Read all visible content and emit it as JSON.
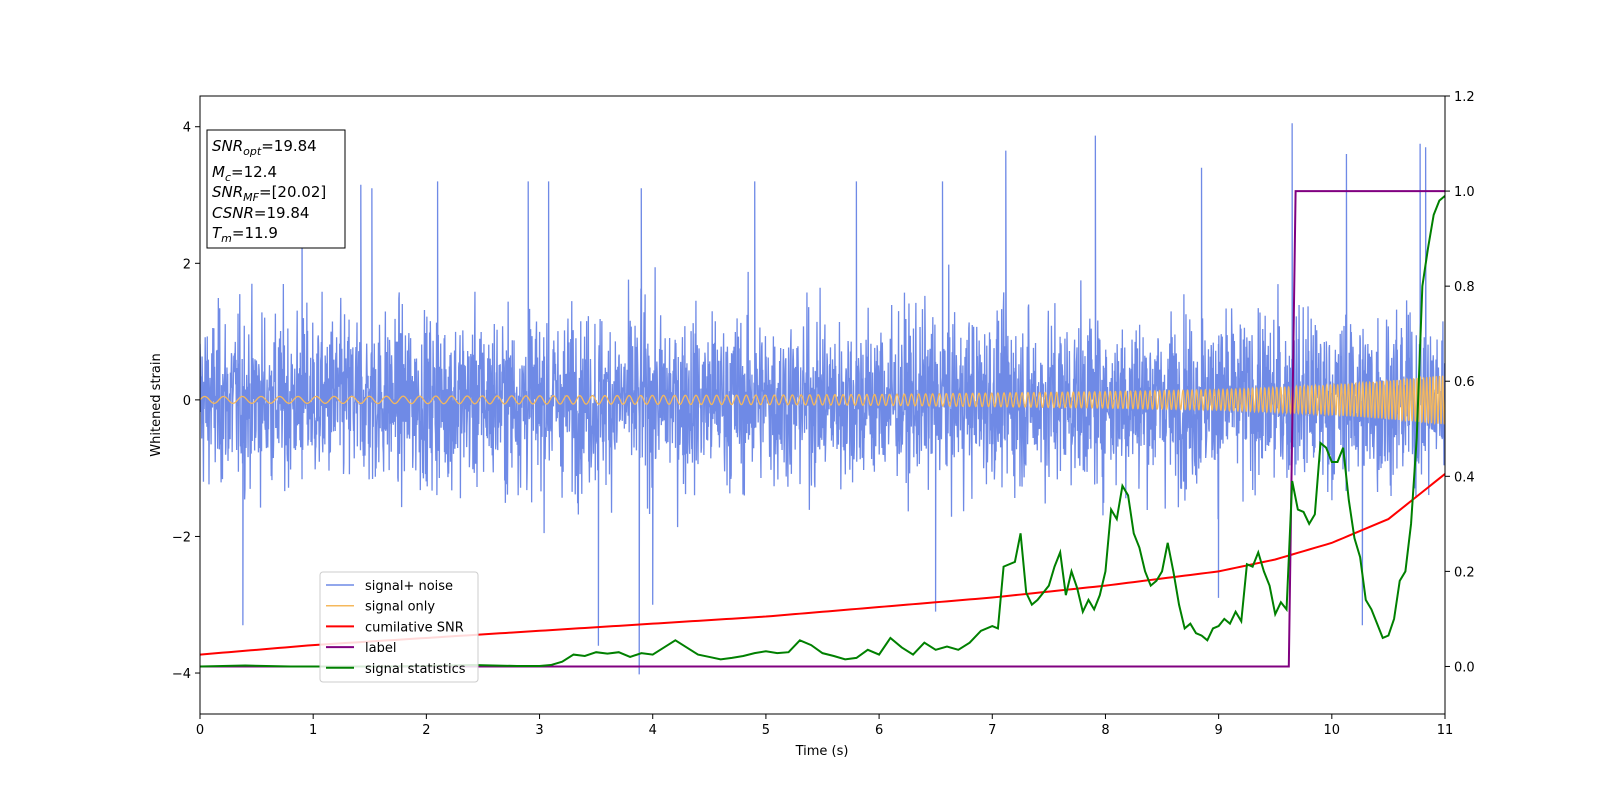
{
  "chart_data": {
    "type": "line",
    "title": "",
    "xlabel": "Time (s)",
    "ylabel": "Whitened strain",
    "y2label": "",
    "xlim": [
      0,
      11
    ],
    "ylim": [
      -4.6,
      4.45
    ],
    "y2lim": [
      -0.1,
      1.2
    ],
    "xticks": [
      "0",
      "1",
      "2",
      "3",
      "4",
      "5",
      "6",
      "7",
      "8",
      "9",
      "10",
      "11"
    ],
    "yticks": [
      "4",
      "2",
      "0",
      "−2",
      "−4"
    ],
    "y2ticks": [
      "1.2",
      "1.0",
      "0.8",
      "0.6",
      "0.4",
      "0.2",
      "0.0"
    ],
    "grid": false,
    "legend_position": "lower-left",
    "colors": {
      "signal_noise": "#6f8ae6",
      "signal_only": "#f5b85c",
      "cumulative_snr": "#ff0000",
      "label": "#800080",
      "signal_statistics": "#008000"
    },
    "annotation": {
      "snr_opt": {
        "symbol": "SNR",
        "sub": "opt",
        "value": "=19.84"
      },
      "mc": {
        "symbol": "M",
        "sub": "c",
        "value": "=12.4"
      },
      "snr_mf": {
        "symbol": "SNR",
        "sub": "MF",
        "value": "=[20.02]"
      },
      "csnr": {
        "symbol": "CSNR",
        "sub": "",
        "value": "=19.84"
      },
      "tm": {
        "symbol": "T",
        "sub": "m",
        "value": "=11.9"
      }
    },
    "series": [
      {
        "name": "signal+ noise",
        "axis": "left",
        "envelope": {
          "typical_amplitude": 1.9,
          "max_value": 4.05,
          "min_value": -4.02,
          "mean": 0
        },
        "peaks": [
          [
            0.9,
            3.2
          ],
          [
            1.42,
            3.15
          ],
          [
            1.52,
            3.1
          ],
          [
            2.1,
            3.2
          ],
          [
            2.9,
            3.2
          ],
          [
            3.08,
            3.2
          ],
          [
            3.9,
            3.1
          ],
          [
            4.9,
            3.2
          ],
          [
            5.8,
            3.2
          ],
          [
            6.56,
            3.2
          ],
          [
            7.12,
            3.65
          ],
          [
            7.91,
            3.87
          ],
          [
            8.85,
            3.4
          ],
          [
            9.65,
            4.05
          ],
          [
            10.13,
            3.6
          ],
          [
            10.78,
            3.75
          ],
          [
            10.83,
            3.7
          ]
        ],
        "troughs": [
          [
            0.38,
            -3.3
          ],
          [
            3.52,
            -3.6
          ],
          [
            3.88,
            -4.02
          ],
          [
            4.0,
            -3.0
          ],
          [
            6.5,
            -3.1
          ],
          [
            9.0,
            -2.9
          ],
          [
            10.27,
            -3.3
          ]
        ]
      },
      {
        "name": "signal only",
        "axis": "left",
        "x": [
          0,
          1,
          2,
          3,
          4,
          5,
          6,
          7,
          8,
          9,
          9.5,
          10,
          10.5,
          11
        ],
        "amplitude": [
          0.05,
          0.05,
          0.055,
          0.06,
          0.065,
          0.07,
          0.08,
          0.1,
          0.12,
          0.15,
          0.18,
          0.22,
          0.28,
          0.36
        ]
      },
      {
        "name": "cumilative SNR",
        "axis": "right",
        "x": [
          0,
          1,
          2,
          3,
          4,
          5,
          6,
          7,
          8,
          9,
          9.5,
          10,
          10.5,
          11
        ],
        "values": [
          0.025,
          0.045,
          0.06,
          0.075,
          0.09,
          0.105,
          0.125,
          0.145,
          0.17,
          0.2,
          0.225,
          0.26,
          0.31,
          0.405
        ]
      },
      {
        "name": "label",
        "axis": "right",
        "x": [
          0,
          9.62,
          9.68,
          11
        ],
        "values": [
          0,
          0,
          1,
          1
        ]
      },
      {
        "name": "signal statistics",
        "axis": "right",
        "x": [
          0,
          0.4,
          0.8,
          1.2,
          1.6,
          2.0,
          2.4,
          2.8,
          3.0,
          3.1,
          3.2,
          3.3,
          3.4,
          3.5,
          3.6,
          3.7,
          3.8,
          3.9,
          4.0,
          4.1,
          4.2,
          4.3,
          4.4,
          4.5,
          4.6,
          4.7,
          4.8,
          4.9,
          5.0,
          5.1,
          5.2,
          5.3,
          5.4,
          5.5,
          5.6,
          5.7,
          5.8,
          5.9,
          6.0,
          6.1,
          6.2,
          6.3,
          6.4,
          6.5,
          6.6,
          6.7,
          6.8,
          6.9,
          7.0,
          7.05,
          7.1,
          7.2,
          7.25,
          7.3,
          7.35,
          7.4,
          7.5,
          7.55,
          7.6,
          7.65,
          7.7,
          7.75,
          7.8,
          7.85,
          7.9,
          7.95,
          8.0,
          8.05,
          8.1,
          8.15,
          8.2,
          8.25,
          8.3,
          8.35,
          8.4,
          8.45,
          8.5,
          8.55,
          8.6,
          8.65,
          8.7,
          8.75,
          8.8,
          8.85,
          8.9,
          8.95,
          9.0,
          9.05,
          9.1,
          9.15,
          9.2,
          9.25,
          9.3,
          9.35,
          9.4,
          9.45,
          9.5,
          9.55,
          9.6,
          9.65,
          9.7,
          9.75,
          9.8,
          9.85,
          9.9,
          9.95,
          10.0,
          10.05,
          10.1,
          10.15,
          10.2,
          10.25,
          10.3,
          10.35,
          10.4,
          10.45,
          10.5,
          10.55,
          10.6,
          10.65,
          10.7,
          10.75,
          10.8,
          10.85,
          10.9,
          10.95,
          11.0
        ],
        "values": [
          0.0,
          0.002,
          0.0,
          0.0,
          0.0,
          0.001,
          0.003,
          0.001,
          0.001,
          0.003,
          0.01,
          0.025,
          0.022,
          0.03,
          0.027,
          0.03,
          0.02,
          0.028,
          0.025,
          0.04,
          0.055,
          0.04,
          0.025,
          0.02,
          0.015,
          0.018,
          0.022,
          0.028,
          0.032,
          0.028,
          0.03,
          0.055,
          0.045,
          0.028,
          0.022,
          0.015,
          0.018,
          0.035,
          0.025,
          0.06,
          0.04,
          0.025,
          0.05,
          0.035,
          0.042,
          0.035,
          0.05,
          0.075,
          0.085,
          0.08,
          0.21,
          0.22,
          0.28,
          0.155,
          0.13,
          0.14,
          0.17,
          0.21,
          0.24,
          0.15,
          0.2,
          0.165,
          0.115,
          0.14,
          0.12,
          0.15,
          0.2,
          0.33,
          0.31,
          0.38,
          0.36,
          0.28,
          0.25,
          0.2,
          0.17,
          0.18,
          0.2,
          0.26,
          0.2,
          0.13,
          0.08,
          0.09,
          0.07,
          0.065,
          0.055,
          0.08,
          0.085,
          0.1,
          0.09,
          0.115,
          0.095,
          0.215,
          0.21,
          0.24,
          0.2,
          0.17,
          0.11,
          0.135,
          0.12,
          0.39,
          0.33,
          0.325,
          0.3,
          0.32,
          0.47,
          0.46,
          0.43,
          0.43,
          0.46,
          0.35,
          0.27,
          0.23,
          0.14,
          0.12,
          0.09,
          0.06,
          0.065,
          0.1,
          0.18,
          0.2,
          0.3,
          0.48,
          0.8,
          0.88,
          0.95,
          0.98,
          0.99
        ]
      }
    ]
  }
}
